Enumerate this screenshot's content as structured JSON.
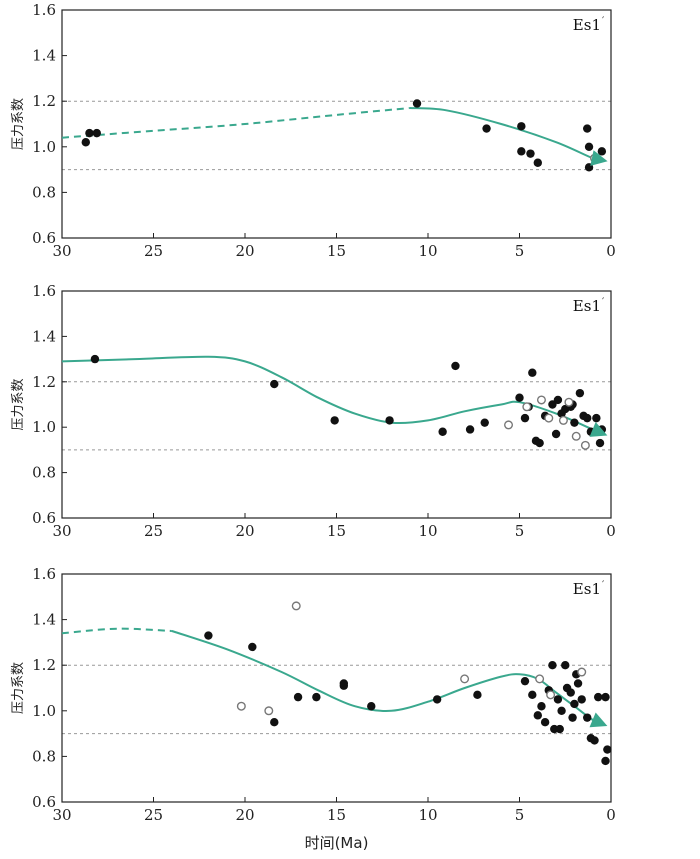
{
  "colors": {
    "trend": "#3aa88e",
    "point_filled": "#111111",
    "point_open": "#777777",
    "ref_line": "#999999"
  },
  "xlabel": "时间(Ma)",
  "chart_data": [
    {
      "type": "scatter",
      "tag": "Es1",
      "ylabel": "压力系数",
      "xlim": [
        30,
        0
      ],
      "ylim": [
        0.6,
        1.6
      ],
      "x_ticks": [
        30,
        25,
        20,
        15,
        10,
        5,
        0
      ],
      "y_ticks": [
        "0.6",
        "0.8",
        "1.0",
        "1.2",
        "1.4",
        "1.6"
      ],
      "ref_lines": [
        0.9,
        1.2
      ],
      "filled": [
        [
          28.7,
          1.02
        ],
        [
          28.5,
          1.06
        ],
        [
          28.1,
          1.06
        ],
        [
          10.6,
          1.19
        ],
        [
          6.8,
          1.08
        ],
        [
          4.9,
          1.09
        ],
        [
          4.9,
          0.98
        ],
        [
          4.4,
          0.97
        ],
        [
          4.0,
          0.93
        ],
        [
          1.3,
          1.08
        ],
        [
          1.2,
          1.0
        ],
        [
          1.2,
          0.91
        ],
        [
          0.5,
          0.98
        ]
      ],
      "open": [
        [
          0.9,
          0.95
        ]
      ],
      "trend_dashed": [
        [
          30,
          1.04
        ],
        [
          25,
          1.07
        ],
        [
          20,
          1.1
        ],
        [
          15,
          1.14
        ],
        [
          11,
          1.17
        ]
      ],
      "trend_solid": [
        [
          11,
          1.17
        ],
        [
          9,
          1.16
        ],
        [
          6,
          1.1
        ],
        [
          3,
          1.02
        ],
        [
          1,
          0.95
        ],
        [
          0.4,
          0.94
        ]
      ]
    },
    {
      "type": "scatter",
      "tag": "Es1",
      "ylabel": "压力系数",
      "xlim": [
        30,
        0
      ],
      "ylim": [
        0.6,
        1.6
      ],
      "x_ticks": [
        30,
        25,
        20,
        15,
        10,
        5,
        0
      ],
      "y_ticks": [
        "0.6",
        "0.8",
        "1.0",
        "1.2",
        "1.4",
        "1.6"
      ],
      "ref_lines": [
        0.9,
        1.2
      ],
      "filled": [
        [
          28.2,
          1.3
        ],
        [
          18.4,
          1.19
        ],
        [
          15.1,
          1.03
        ],
        [
          12.1,
          1.03
        ],
        [
          9.2,
          0.98
        ],
        [
          8.5,
          1.27
        ],
        [
          7.7,
          0.99
        ],
        [
          6.9,
          1.02
        ],
        [
          5.0,
          1.13
        ],
        [
          4.7,
          1.04
        ],
        [
          4.3,
          1.24
        ],
        [
          4.1,
          0.94
        ],
        [
          4.5,
          1.09
        ],
        [
          3.9,
          0.93
        ],
        [
          3.6,
          1.05
        ],
        [
          3.2,
          1.1
        ],
        [
          2.9,
          1.12
        ],
        [
          2.7,
          1.06
        ],
        [
          2.5,
          1.08
        ],
        [
          2.2,
          1.09
        ],
        [
          2.0,
          1.02
        ],
        [
          1.7,
          1.15
        ],
        [
          1.5,
          1.05
        ],
        [
          1.3,
          1.04
        ],
        [
          1.1,
          0.98
        ],
        [
          0.8,
          1.04
        ],
        [
          0.6,
          0.93
        ],
        [
          0.5,
          0.99
        ],
        [
          3.0,
          0.97
        ],
        [
          2.1,
          1.1
        ]
      ],
      "open": [
        [
          5.6,
          1.01
        ],
        [
          4.6,
          1.09
        ],
        [
          3.8,
          1.12
        ],
        [
          3.4,
          1.04
        ],
        [
          2.6,
          1.03
        ],
        [
          2.3,
          1.11
        ],
        [
          1.9,
          0.96
        ],
        [
          1.4,
          0.92
        ]
      ],
      "trend_dashed": [],
      "trend_solid": [
        [
          30,
          1.29
        ],
        [
          26,
          1.3
        ],
        [
          22,
          1.31
        ],
        [
          20,
          1.29
        ],
        [
          18,
          1.22
        ],
        [
          16,
          1.13
        ],
        [
          14,
          1.06
        ],
        [
          12,
          1.02
        ],
        [
          10,
          1.03
        ],
        [
          8,
          1.07
        ],
        [
          6,
          1.1
        ],
        [
          5,
          1.11
        ],
        [
          3,
          1.06
        ],
        [
          1,
          0.99
        ],
        [
          0.4,
          0.97
        ]
      ]
    },
    {
      "type": "scatter",
      "tag": "Es1",
      "ylabel": "压力系数",
      "xlim": [
        30,
        0
      ],
      "ylim": [
        0.6,
        1.6
      ],
      "x_ticks": [
        30,
        25,
        20,
        15,
        10,
        5,
        0
      ],
      "y_ticks": [
        "0.6",
        "0.8",
        "1.0",
        "1.2",
        "1.4",
        "1.6"
      ],
      "ref_lines": [
        0.9,
        1.2
      ],
      "filled": [
        [
          22.0,
          1.33
        ],
        [
          19.6,
          1.28
        ],
        [
          18.4,
          0.95
        ],
        [
          17.1,
          1.06
        ],
        [
          16.1,
          1.06
        ],
        [
          14.6,
          1.12
        ],
        [
          14.6,
          1.11
        ],
        [
          13.1,
          1.02
        ],
        [
          9.5,
          1.05
        ],
        [
          7.3,
          1.07
        ],
        [
          4.7,
          1.13
        ],
        [
          4.3,
          1.07
        ],
        [
          4.0,
          0.98
        ],
        [
          3.8,
          1.02
        ],
        [
          3.6,
          0.95
        ],
        [
          3.4,
          1.09
        ],
        [
          3.2,
          1.2
        ],
        [
          3.1,
          0.92
        ],
        [
          2.9,
          1.05
        ],
        [
          2.7,
          1.0
        ],
        [
          2.5,
          1.2
        ],
        [
          2.4,
          1.1
        ],
        [
          2.2,
          1.08
        ],
        [
          2.0,
          1.03
        ],
        [
          1.9,
          1.16
        ],
        [
          1.6,
          1.05
        ],
        [
          1.3,
          0.97
        ],
        [
          1.1,
          0.88
        ],
        [
          0.9,
          0.87
        ],
        [
          0.7,
          1.06
        ],
        [
          0.3,
          1.06
        ],
        [
          0.3,
          0.78
        ],
        [
          0.2,
          0.83
        ],
        [
          2.8,
          0.92
        ],
        [
          2.1,
          0.97
        ],
        [
          1.8,
          1.12
        ]
      ],
      "open": [
        [
          20.2,
          1.02
        ],
        [
          18.7,
          1.0
        ],
        [
          17.2,
          1.46
        ],
        [
          8.0,
          1.14
        ],
        [
          3.9,
          1.14
        ],
        [
          3.3,
          1.07
        ],
        [
          1.6,
          1.17
        ]
      ],
      "trend_dashed": [
        [
          30,
          1.34
        ],
        [
          27,
          1.36
        ],
        [
          24,
          1.35
        ]
      ],
      "trend_solid": [
        [
          24,
          1.35
        ],
        [
          21,
          1.27
        ],
        [
          18,
          1.17
        ],
        [
          16,
          1.09
        ],
        [
          14,
          1.02
        ],
        [
          12,
          1.0
        ],
        [
          10,
          1.04
        ],
        [
          8,
          1.1
        ],
        [
          6,
          1.15
        ],
        [
          5,
          1.16
        ],
        [
          4,
          1.14
        ],
        [
          3,
          1.08
        ],
        [
          2,
          1.02
        ],
        [
          1,
          0.96
        ],
        [
          0.4,
          0.94
        ]
      ]
    }
  ]
}
